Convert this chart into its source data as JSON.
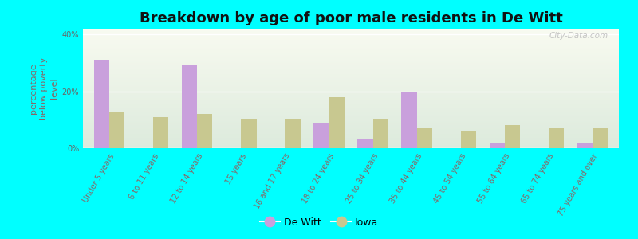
{
  "title": "Breakdown by age of poor male residents in De Witt",
  "ylabel": "percentage\nbelow poverty\nlevel",
  "categories": [
    "Under 5 years",
    "6 to 11 years",
    "12 to 14 years",
    "15 years",
    "16 and 17 years",
    "18 to 24 years",
    "25 to 34 years",
    "35 to 44 years",
    "45 to 54 years",
    "55 to 64 years",
    "65 to 74 years",
    "75 years and over"
  ],
  "dewitt_values": [
    31,
    0,
    29,
    0,
    0,
    9,
    3,
    20,
    0,
    2,
    0,
    2
  ],
  "iowa_values": [
    13,
    11,
    12,
    10,
    10,
    18,
    10,
    7,
    6,
    8,
    7,
    7
  ],
  "dewitt_color": "#c9a0dc",
  "iowa_color": "#c8c890",
  "background_color": "#00ffff",
  "plot_bg_color_top": "#f8faf0",
  "plot_bg_color_bottom": "#dceadc",
  "ylim": [
    0,
    42
  ],
  "ytick_vals": [
    0,
    20,
    40
  ],
  "ytick_labels": [
    "0%",
    "20%",
    "40%"
  ],
  "bar_width": 0.35,
  "title_fontsize": 13,
  "ylabel_fontsize": 8,
  "tick_fontsize": 7,
  "legend_fontsize": 9,
  "xtick_color": "#886666",
  "ytick_color": "#666666",
  "ylabel_color": "#886666",
  "watermark": "City-Data.com"
}
